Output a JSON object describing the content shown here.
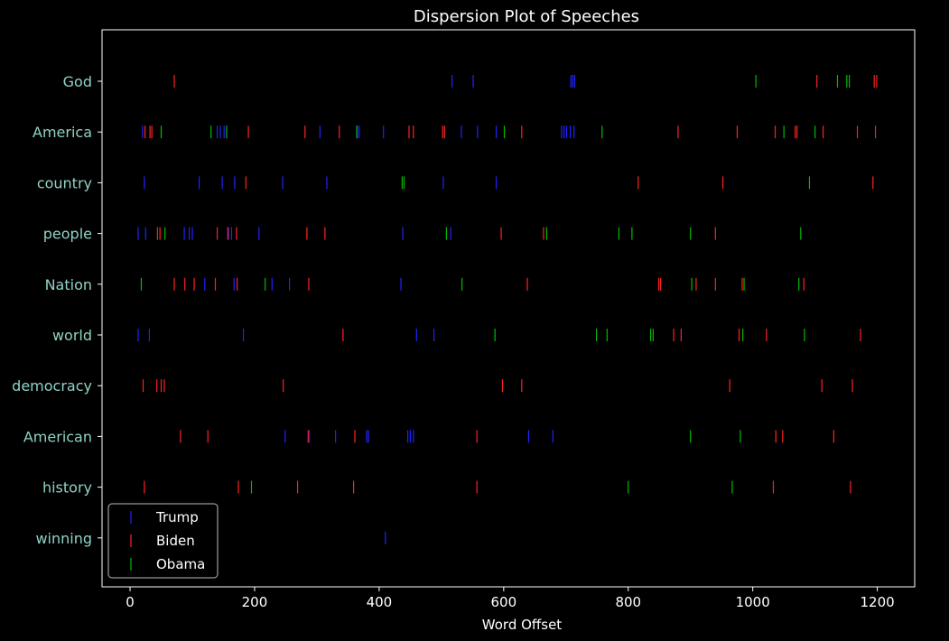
{
  "chart_data": {
    "type": "scatter",
    "title": "Dispersion Plot of Speeches",
    "xlabel": "Word Offset",
    "ylabel": "",
    "xlim": [
      -45,
      1260
    ],
    "xticks": [
      0,
      200,
      400,
      600,
      800,
      1000,
      1200
    ],
    "categories": [
      "God",
      "America",
      "country",
      "people",
      "Nation",
      "world",
      "democracy",
      "American",
      "history",
      "winning"
    ],
    "legend_position": "lower-left",
    "grid": false,
    "series": [
      {
        "name": "Trump",
        "color": "#2222ff",
        "points": {
          "God": [
            517,
            551,
            708,
            711,
            714
          ],
          "America": [
            20,
            140,
            145,
            151,
            305,
            365,
            368,
            407,
            532,
            558,
            588,
            693,
            697,
            701,
            707,
            713
          ],
          "country": [
            23,
            111,
            148,
            168,
            245,
            316,
            503,
            588
          ],
          "people": [
            13,
            25,
            87,
            95,
            100,
            158,
            163,
            207,
            438,
            515
          ],
          "Nation": [
            120,
            167,
            228,
            256,
            435
          ],
          "world": [
            13,
            31,
            182,
            460,
            488
          ],
          "democracy": [],
          "American": [
            249,
            288,
            330,
            380,
            383,
            446,
            450,
            455,
            640,
            679
          ],
          "history": [],
          "winning": [
            410
          ]
        }
      },
      {
        "name": "Biden",
        "color": "#ff2222",
        "points": {
          "God": [
            71,
            1103,
            1195,
            1199
          ],
          "America": [
            24,
            32,
            35,
            190,
            281,
            336,
            448,
            455,
            502,
            505,
            629,
            880,
            975,
            1036,
            1068,
            1071,
            1113,
            1168,
            1197
          ],
          "country": [
            186,
            816,
            952,
            1193
          ],
          "people": [
            44,
            48,
            140,
            157,
            171,
            284,
            313,
            596,
            664,
            940
          ],
          "Nation": [
            71,
            88,
            103,
            137,
            172,
            287,
            638,
            849,
            852,
            909,
            940,
            983,
            1082
          ],
          "world": [
            342,
            873,
            885,
            978,
            1022,
            1173
          ],
          "democracy": [
            21,
            43,
            50,
            55,
            246,
            598,
            629,
            963,
            1111,
            1160
          ],
          "American": [
            81,
            125,
            286,
            361,
            557,
            1037,
            1048,
            1130
          ],
          "history": [
            23,
            174,
            269,
            359,
            557,
            1033,
            1157
          ],
          "winning": []
        }
      },
      {
        "name": "Obama",
        "color": "#00bb00",
        "points": {
          "God": [
            1005,
            1136,
            1151,
            1155
          ],
          "America": [
            50,
            130,
            155,
            364,
            601,
            758,
            1050,
            1100
          ],
          "country": [
            437,
            440,
            1091
          ],
          "people": [
            56,
            508,
            669,
            785,
            806,
            900,
            1077
          ],
          "Nation": [
            18,
            217,
            533,
            902,
            986,
            1074
          ],
          "world": [
            586,
            749,
            766,
            836,
            840,
            984,
            1083
          ],
          "democracy": [],
          "American": [
            900,
            980
          ],
          "history": [
            195,
            800,
            967
          ],
          "winning": []
        }
      }
    ]
  }
}
